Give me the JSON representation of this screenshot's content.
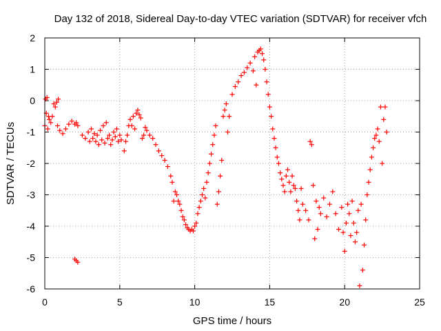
{
  "chart_data": {
    "type": "scatter",
    "title": "Day 132 of 2018, Sidereal Day-to-day VTEC variation (SDTVAR) for receiver vfch",
    "xlabel": "GPS time / hours",
    "ylabel": "SDTVAR / TECUs",
    "xlim": [
      0,
      25
    ],
    "ylim": [
      -6,
      2
    ],
    "x_ticks": [
      0,
      5,
      10,
      15,
      20,
      25
    ],
    "y_ticks": [
      2,
      1,
      0,
      -1,
      -2,
      -3,
      -4,
      -5,
      -6
    ],
    "x_tick_labels": [
      "0",
      "5",
      "10",
      "15",
      "20",
      "25"
    ],
    "y_tick_labels": [
      "2",
      "1",
      "0",
      "-1",
      "-2",
      "-3",
      "-4",
      "-5",
      "-6"
    ],
    "grid": true,
    "marker": "+",
    "marker_color": "#ff0000",
    "series": [
      {
        "name": "SDTVAR",
        "points": [
          [
            0.0,
            -0.8
          ],
          [
            0.05,
            0.05
          ],
          [
            0.1,
            -0.4
          ],
          [
            0.15,
            0.1
          ],
          [
            0.2,
            -0.9
          ],
          [
            0.25,
            -0.5
          ],
          [
            0.3,
            -0.6
          ],
          [
            0.4,
            -0.7
          ],
          [
            0.5,
            -0.5
          ],
          [
            0.6,
            -0.1
          ],
          [
            0.7,
            -0.2
          ],
          [
            0.8,
            -0.05
          ],
          [
            0.85,
            -0.8
          ],
          [
            0.9,
            0.05
          ],
          [
            1.0,
            -0.95
          ],
          [
            1.2,
            -1.05
          ],
          [
            1.4,
            -0.9
          ],
          [
            1.6,
            -0.75
          ],
          [
            1.8,
            -0.65
          ],
          [
            2.0,
            -0.75
          ],
          [
            2.1,
            -0.7
          ],
          [
            2.2,
            -0.8
          ],
          [
            2.0,
            -5.05
          ],
          [
            2.1,
            -5.1
          ],
          [
            2.2,
            -5.15
          ],
          [
            2.5,
            -1.1
          ],
          [
            2.7,
            -1.2
          ],
          [
            2.9,
            -1.0
          ],
          [
            3.0,
            -1.3
          ],
          [
            3.1,
            -0.9
          ],
          [
            3.2,
            -1.2
          ],
          [
            3.3,
            -1.05
          ],
          [
            3.4,
            -1.3
          ],
          [
            3.5,
            -1.1
          ],
          [
            3.6,
            -1.4
          ],
          [
            3.7,
            -0.95
          ],
          [
            3.8,
            -1.25
          ],
          [
            3.9,
            -0.8
          ],
          [
            4.0,
            -1.35
          ],
          [
            4.1,
            -0.7
          ],
          [
            4.2,
            -1.2
          ],
          [
            4.3,
            -1.1
          ],
          [
            4.4,
            -1.4
          ],
          [
            4.5,
            -1.25
          ],
          [
            4.6,
            -1.0
          ],
          [
            4.7,
            -1.15
          ],
          [
            4.8,
            -0.9
          ],
          [
            4.9,
            -1.3
          ],
          [
            5.0,
            -1.1
          ],
          [
            5.1,
            -1.25
          ],
          [
            5.3,
            -1.6
          ],
          [
            5.4,
            -1.3
          ],
          [
            5.5,
            -1.1
          ],
          [
            5.6,
            -0.8
          ],
          [
            5.7,
            -0.6
          ],
          [
            5.8,
            -0.8
          ],
          [
            5.9,
            -0.5
          ],
          [
            6.0,
            -0.9
          ],
          [
            6.1,
            -0.4
          ],
          [
            6.2,
            -0.3
          ],
          [
            6.3,
            -0.45
          ],
          [
            6.4,
            -0.55
          ],
          [
            6.5,
            -1.2
          ],
          [
            6.6,
            -1.1
          ],
          [
            6.7,
            -0.85
          ],
          [
            6.8,
            -0.95
          ],
          [
            7.0,
            -1.1
          ],
          [
            7.2,
            -1.2
          ],
          [
            7.4,
            -1.4
          ],
          [
            7.6,
            -1.6
          ],
          [
            7.8,
            -1.75
          ],
          [
            8.0,
            -1.9
          ],
          [
            8.2,
            -2.1
          ],
          [
            8.4,
            -2.4
          ],
          [
            8.5,
            -2.6
          ],
          [
            8.6,
            -3.2
          ],
          [
            8.7,
            -2.9
          ],
          [
            8.8,
            -3.0
          ],
          [
            8.9,
            -3.2
          ],
          [
            9.0,
            -3.3
          ],
          [
            9.1,
            -3.5
          ],
          [
            9.2,
            -3.7
          ],
          [
            9.3,
            -3.8
          ],
          [
            9.4,
            -3.95
          ],
          [
            9.5,
            -4.05
          ],
          [
            9.6,
            -4.1
          ],
          [
            9.7,
            -4.15
          ],
          [
            9.8,
            -4.1
          ],
          [
            9.9,
            -4.15
          ],
          [
            10.0,
            -4.0
          ],
          [
            10.1,
            -3.9
          ],
          [
            10.2,
            -3.6
          ],
          [
            10.3,
            -3.4
          ],
          [
            10.4,
            -3.2
          ],
          [
            10.5,
            -3.0
          ],
          [
            10.6,
            -2.8
          ],
          [
            10.7,
            -3.1
          ],
          [
            10.8,
            -2.6
          ],
          [
            10.9,
            -2.3
          ],
          [
            11.0,
            -2.0
          ],
          [
            11.1,
            -1.7
          ],
          [
            11.2,
            -1.4
          ],
          [
            11.3,
            -1.1
          ],
          [
            11.4,
            -0.8
          ],
          [
            11.5,
            -3.3
          ],
          [
            11.6,
            -2.9
          ],
          [
            11.7,
            -2.4
          ],
          [
            11.8,
            -1.9
          ],
          [
            11.9,
            -0.5
          ],
          [
            12.0,
            -0.3
          ],
          [
            12.1,
            -0.1
          ],
          [
            12.2,
            -1.0
          ],
          [
            12.3,
            -0.5
          ],
          [
            12.5,
            0.2
          ],
          [
            12.7,
            0.45
          ],
          [
            12.9,
            0.6
          ],
          [
            13.1,
            0.8
          ],
          [
            13.3,
            0.9
          ],
          [
            13.5,
            1.05
          ],
          [
            13.7,
            1.2
          ],
          [
            13.9,
            0.95
          ],
          [
            14.0,
            1.4
          ],
          [
            14.1,
            0.5
          ],
          [
            14.2,
            1.55
          ],
          [
            14.3,
            1.6
          ],
          [
            14.4,
            1.65
          ],
          [
            14.5,
            1.5
          ],
          [
            14.6,
            1.3
          ],
          [
            14.7,
            1.0
          ],
          [
            14.8,
            0.6
          ],
          [
            14.9,
            0.2
          ],
          [
            15.0,
            -0.2
          ],
          [
            15.1,
            -0.5
          ],
          [
            15.2,
            -0.9
          ],
          [
            15.3,
            -1.2
          ],
          [
            15.4,
            -1.5
          ],
          [
            15.5,
            -1.8
          ],
          [
            15.6,
            -2.0
          ],
          [
            15.7,
            -2.3
          ],
          [
            15.8,
            -2.5
          ],
          [
            15.9,
            -2.7
          ],
          [
            16.0,
            -2.9
          ],
          [
            16.1,
            -2.4
          ],
          [
            16.2,
            -2.2
          ],
          [
            16.3,
            -2.6
          ],
          [
            16.4,
            -2.9
          ],
          [
            16.5,
            -2.4
          ],
          [
            16.6,
            -2.7
          ],
          [
            16.7,
            -2.8
          ],
          [
            16.8,
            -3.2
          ],
          [
            16.9,
            -3.5
          ],
          [
            17.0,
            -3.8
          ],
          [
            17.1,
            -2.8
          ],
          [
            17.2,
            -3.3
          ],
          [
            17.4,
            -3.5
          ],
          [
            17.6,
            -3.8
          ],
          [
            17.7,
            -1.3
          ],
          [
            17.8,
            -1.4
          ],
          [
            17.9,
            -2.7
          ],
          [
            18.0,
            -4.4
          ],
          [
            18.1,
            -3.2
          ],
          [
            18.2,
            -4.1
          ],
          [
            18.3,
            -3.4
          ],
          [
            18.4,
            -3.6
          ],
          [
            18.6,
            -3.1
          ],
          [
            18.8,
            -3.7
          ],
          [
            19.0,
            -3.3
          ],
          [
            19.2,
            -2.9
          ],
          [
            19.4,
            -3.6
          ],
          [
            19.6,
            -4.1
          ],
          [
            19.8,
            -3.4
          ],
          [
            19.9,
            -4.2
          ],
          [
            20.0,
            -4.8
          ],
          [
            20.1,
            -3.9
          ],
          [
            20.2,
            -3.3
          ],
          [
            20.3,
            -3.6
          ],
          [
            20.4,
            -4.3
          ],
          [
            20.5,
            -3.2
          ],
          [
            20.6,
            -3.9
          ],
          [
            20.7,
            -4.5
          ],
          [
            20.8,
            -4.2
          ],
          [
            20.9,
            -3.5
          ],
          [
            21.0,
            -5.9
          ],
          [
            21.1,
            -3.3
          ],
          [
            21.2,
            -5.4
          ],
          [
            21.3,
            -4.6
          ],
          [
            21.4,
            -3.8
          ],
          [
            21.5,
            -3.0
          ],
          [
            21.6,
            -2.6
          ],
          [
            21.7,
            -2.2
          ],
          [
            21.8,
            -1.8
          ],
          [
            21.9,
            -1.5
          ],
          [
            22.0,
            -1.2
          ],
          [
            22.1,
            -1.1
          ],
          [
            22.2,
            -0.9
          ],
          [
            22.3,
            -1.3
          ],
          [
            22.4,
            -0.2
          ],
          [
            22.5,
            -2.0
          ],
          [
            22.6,
            -0.6
          ],
          [
            22.7,
            -0.2
          ],
          [
            22.8,
            -1.0
          ]
        ]
      }
    ]
  }
}
